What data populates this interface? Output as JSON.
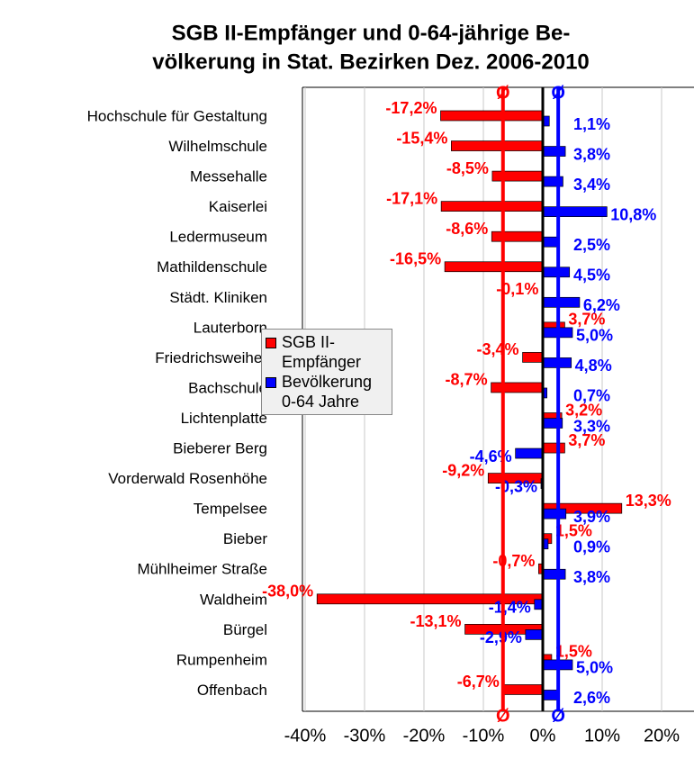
{
  "chart_data": {
    "type": "hbar",
    "title": [
      "SGB II-Empfänger und 0-64-jährige Be-",
      "völkerung in Stat. Bezirken Dez. 2006-2010"
    ],
    "average_label": "Ø",
    "categories": [
      "Hochschule für Gestaltung",
      "Wilhelmschule",
      "Messehalle",
      "Kaiserlei",
      "Ledermuseum",
      "Mathildenschule",
      "Städt. Kliniken",
      "Lauterborn",
      "Friedrichsweiher",
      "Bachschule",
      "Lichtenplatte",
      "Bieberer Berg",
      "Vorderwald Rosenhöhe",
      "Tempelsee",
      "Bieber",
      "Mühlheimer Straße",
      "Waldheim",
      "Bürgel",
      "Rumpenheim",
      "Offenbach"
    ],
    "series": [
      {
        "name": "SGB II-Empfänger",
        "color": "#ff0000",
        "values": [
          -17.2,
          -15.4,
          -8.5,
          -17.1,
          -8.6,
          -16.5,
          -0.1,
          3.7,
          -3.4,
          -8.7,
          3.2,
          3.7,
          -9.2,
          13.3,
          1.5,
          -0.7,
          -38.0,
          -13.1,
          1.5,
          -6.7
        ],
        "value_labels": [
          "-17,2%",
          "-15,4%",
          "-8,5%",
          "-17,1%",
          "-8,6%",
          "-16,5%",
          "-0,1%",
          "3,7%",
          "-3,4%",
          "-8,7%",
          "3,2%",
          "3,7%",
          "-9,2%",
          "13,3%",
          "1,5%",
          "-0,7%",
          "-38,0%",
          "-13,1%",
          "1,5%",
          "-6,7%"
        ]
      },
      {
        "name": "Bevölkerung 0-64 Jahre",
        "color": "#0000ff",
        "values": [
          1.1,
          3.8,
          3.4,
          10.8,
          2.5,
          4.5,
          6.2,
          5.0,
          4.8,
          0.7,
          3.3,
          -4.6,
          -0.3,
          3.9,
          0.9,
          3.8,
          -1.4,
          -2.9,
          5.0,
          2.6
        ],
        "value_labels": [
          "1,1%",
          "3,8%",
          "3,4%",
          "10,8%",
          "2,5%",
          "4,5%",
          "6,2%",
          "5,0%",
          "4,8%",
          "0,7%",
          "3,3%",
          "-4,6%",
          "-0,3%",
          "3,9%",
          "0,9%",
          "3,8%",
          "-1,4%",
          "-2,9%",
          "5,0%",
          "2,6%"
        ]
      }
    ],
    "xlim": [
      -40,
      20
    ],
    "xticks": [
      {
        "value": -40,
        "label": "-40%"
      },
      {
        "value": -30,
        "label": "-30%"
      },
      {
        "value": -20,
        "label": "-20%"
      },
      {
        "value": -10,
        "label": "-10%"
      },
      {
        "value": 0,
        "label": "0%"
      },
      {
        "value": 10,
        "label": "10%"
      },
      {
        "value": 20,
        "label": "20%"
      }
    ],
    "grid": true
  }
}
